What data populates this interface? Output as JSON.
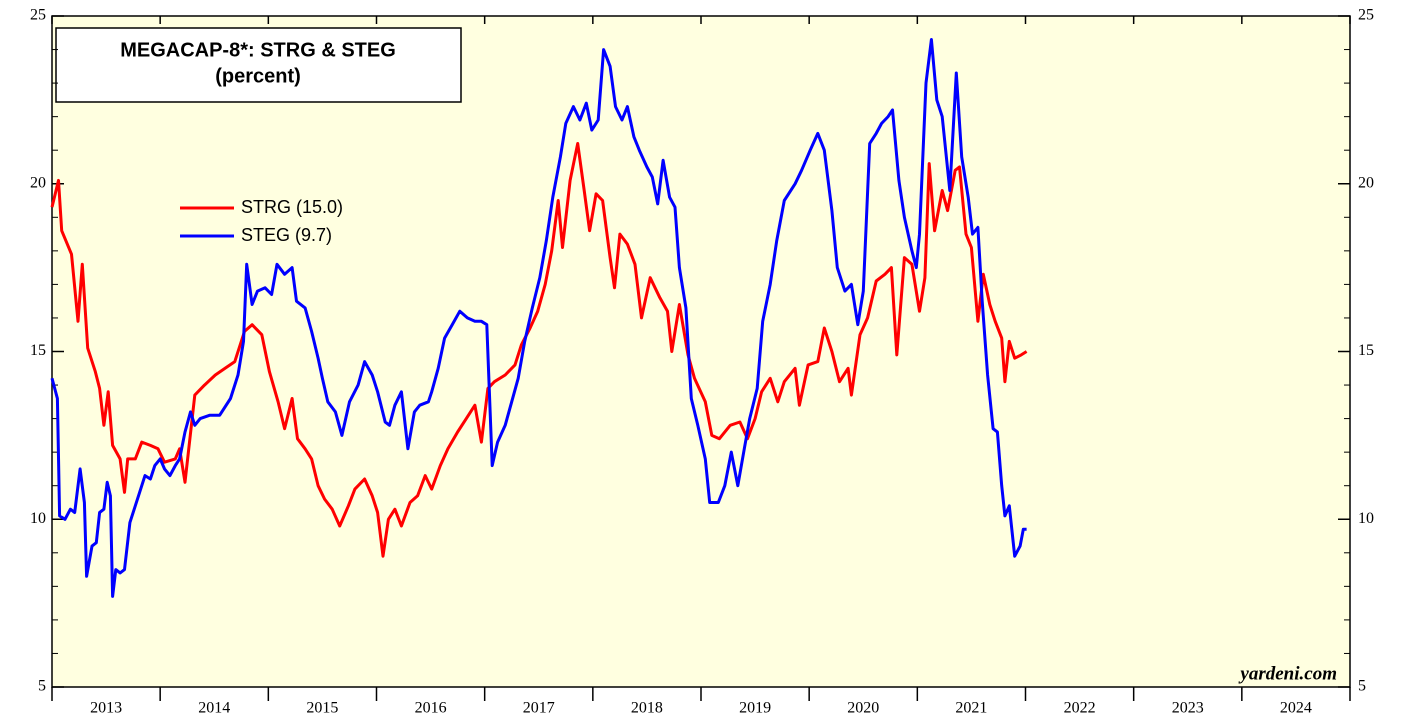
{
  "chart_data": {
    "type": "line",
    "title": "MEGACAP-8*: STRG & STEG",
    "subtitle": "(percent)",
    "watermark": "yardeni.com",
    "xlim": [
      2013,
      2025
    ],
    "xticks": [
      2013,
      2014,
      2015,
      2016,
      2017,
      2018,
      2019,
      2020,
      2021,
      2022,
      2023,
      2024,
      2025
    ],
    "x_labels": [
      {
        "value": 2013.5,
        "label": "2013"
      },
      {
        "value": 2014.5,
        "label": "2014"
      },
      {
        "value": 2015.5,
        "label": "2015"
      },
      {
        "value": 2016.5,
        "label": "2016"
      },
      {
        "value": 2017.5,
        "label": "2017"
      },
      {
        "value": 2018.5,
        "label": "2018"
      },
      {
        "value": 2019.5,
        "label": "2019"
      },
      {
        "value": 2020.5,
        "label": "2020"
      },
      {
        "value": 2021.5,
        "label": "2021"
      },
      {
        "value": 2022.5,
        "label": "2022"
      },
      {
        "value": 2023.5,
        "label": "2023"
      },
      {
        "value": 2024.5,
        "label": "2024"
      }
    ],
    "ylim": [
      5,
      25
    ],
    "yticks": [
      5,
      10,
      15,
      20,
      25
    ],
    "y_minor_ticks": [
      6,
      7,
      8,
      9,
      11,
      12,
      13,
      14,
      16,
      17,
      18,
      19,
      21,
      22,
      23,
      24
    ],
    "series": [
      {
        "name": "STRG (15.0)",
        "color": "#ff0000",
        "x": [
          2013.0,
          2013.06,
          2013.09,
          2013.18,
          2013.24,
          2013.28,
          2013.33,
          2013.4,
          2013.44,
          2013.48,
          2013.52,
          2013.56,
          2013.63,
          2013.67,
          2013.7,
          2013.77,
          2013.83,
          2013.91,
          2013.98,
          2014.04,
          2014.14,
          2014.18,
          2014.23,
          2014.32,
          2014.41,
          2014.51,
          2014.6,
          2014.69,
          2014.78,
          2014.85,
          2014.94,
          2015.01,
          2015.09,
          2015.15,
          2015.22,
          2015.27,
          2015.34,
          2015.4,
          2015.46,
          2015.52,
          2015.59,
          2015.66,
          2015.74,
          2015.8,
          2015.89,
          2015.96,
          2016.01,
          2016.06,
          2016.11,
          2016.17,
          2016.23,
          2016.31,
          2016.38,
          2016.45,
          2016.51,
          2016.59,
          2016.66,
          2016.75,
          2016.83,
          2016.91,
          2016.97,
          2017.03,
          2017.09,
          2017.19,
          2017.28,
          2017.34,
          2017.42,
          2017.49,
          2017.56,
          2017.62,
          2017.68,
          2017.72,
          2017.79,
          2017.86,
          2017.92,
          2017.97,
          2018.03,
          2018.09,
          2018.16,
          2018.2,
          2018.25,
          2018.32,
          2018.39,
          2018.45,
          2018.53,
          2018.62,
          2018.69,
          2018.73,
          2018.8,
          2018.88,
          2018.94,
          2019.04,
          2019.1,
          2019.17,
          2019.27,
          2019.36,
          2019.43,
          2019.5,
          2019.56,
          2019.64,
          2019.71,
          2019.77,
          2019.87,
          2019.91,
          2019.99,
          2020.08,
          2020.14,
          2020.21,
          2020.28,
          2020.36,
          2020.39,
          2020.47,
          2020.54,
          2020.62,
          2020.7,
          2020.76,
          2020.81,
          2020.88,
          2020.95,
          2021.02,
          2021.07,
          2021.11,
          2021.16,
          2021.23,
          2021.28,
          2021.35,
          2021.39,
          2021.45,
          2021.5,
          2021.56,
          2021.61,
          2021.67,
          2021.72,
          2021.78,
          2021.81,
          2021.85,
          2021.9,
          2021.96,
          2022.01
        ],
        "values": [
          19.3,
          20.1,
          18.6,
          17.9,
          15.9,
          17.6,
          15.1,
          14.4,
          13.9,
          12.8,
          13.8,
          12.2,
          11.8,
          10.8,
          11.8,
          11.8,
          12.3,
          12.2,
          12.1,
          11.7,
          11.8,
          12.1,
          11.1,
          13.7,
          14.0,
          14.3,
          14.5,
          14.7,
          15.6,
          15.8,
          15.5,
          14.4,
          13.5,
          12.7,
          13.6,
          12.4,
          12.1,
          11.8,
          11.0,
          10.6,
          10.3,
          9.8,
          10.4,
          10.9,
          11.2,
          10.7,
          10.2,
          8.9,
          10.0,
          10.3,
          9.8,
          10.5,
          10.7,
          11.3,
          10.9,
          11.6,
          12.1,
          12.6,
          13.0,
          13.4,
          12.3,
          13.9,
          14.1,
          14.3,
          14.6,
          15.2,
          15.7,
          16.2,
          17.0,
          18.0,
          19.5,
          18.1,
          20.1,
          21.2,
          19.8,
          18.6,
          19.7,
          19.5,
          17.8,
          16.9,
          18.5,
          18.2,
          17.6,
          16.0,
          17.2,
          16.6,
          16.2,
          15.0,
          16.4,
          14.9,
          14.2,
          13.5,
          12.5,
          12.4,
          12.8,
          12.9,
          12.4,
          13.0,
          13.8,
          14.2,
          13.5,
          14.1,
          14.5,
          13.4,
          14.6,
          14.7,
          15.7,
          15.0,
          14.1,
          14.5,
          13.7,
          15.5,
          16.0,
          17.1,
          17.3,
          17.5,
          14.9,
          17.8,
          17.6,
          16.2,
          17.2,
          20.6,
          18.6,
          19.8,
          19.2,
          20.4,
          20.5,
          18.5,
          18.1,
          15.9,
          17.3,
          16.4,
          15.9,
          15.4,
          14.1,
          15.3,
          14.8,
          14.9,
          15.0
        ]
      },
      {
        "name": "STEG (9.7)",
        "color": "#0000ff",
        "x": [
          2013.0,
          2013.05,
          2013.07,
          2013.12,
          2013.17,
          2013.21,
          2013.26,
          2013.3,
          2013.32,
          2013.37,
          2013.41,
          2013.44,
          2013.48,
          2013.51,
          2013.54,
          2013.56,
          2013.59,
          2013.63,
          2013.67,
          2013.72,
          2013.77,
          2013.81,
          2013.86,
          2013.91,
          2013.95,
          2014.0,
          2014.04,
          2014.09,
          2014.14,
          2014.18,
          2014.23,
          2014.28,
          2014.32,
          2014.37,
          2014.46,
          2014.55,
          2014.65,
          2014.72,
          2014.77,
          2014.8,
          2014.85,
          2014.9,
          2014.97,
          2015.03,
          2015.08,
          2015.15,
          2015.22,
          2015.26,
          2015.34,
          2015.4,
          2015.46,
          2015.5,
          2015.55,
          2015.62,
          2015.68,
          2015.75,
          2015.83,
          2015.89,
          2015.96,
          2016.01,
          2016.08,
          2016.12,
          2016.17,
          2016.23,
          2016.29,
          2016.35,
          2016.4,
          2016.48,
          2016.51,
          2016.57,
          2016.63,
          2016.7,
          2016.77,
          2016.84,
          2016.91,
          2016.97,
          2017.02,
          2017.07,
          2017.12,
          2017.19,
          2017.25,
          2017.31,
          2017.37,
          2017.44,
          2017.51,
          2017.57,
          2017.63,
          2017.7,
          2017.75,
          2017.82,
          2017.88,
          2017.94,
          2017.99,
          2018.05,
          2018.1,
          2018.16,
          2018.21,
          2018.27,
          2018.32,
          2018.38,
          2018.43,
          2018.5,
          2018.55,
          2018.6,
          2018.65,
          2018.71,
          2018.76,
          2018.8,
          2018.86,
          2018.91,
          2018.97,
          2019.04,
          2019.08,
          2019.16,
          2019.22,
          2019.28,
          2019.34,
          2019.4,
          2019.45,
          2019.52,
          2019.57,
          2019.64,
          2019.7,
          2019.77,
          2019.87,
          2019.93,
          2020.01,
          2020.08,
          2020.14,
          2020.21,
          2020.26,
          2020.33,
          2020.39,
          2020.45,
          2020.5,
          2020.56,
          2020.62,
          2020.67,
          2020.73,
          2020.77,
          2020.83,
          2020.88,
          2020.95,
          2020.99,
          2021.02,
          2021.08,
          2021.13,
          2021.18,
          2021.23,
          2021.3,
          2021.36,
          2021.41,
          2021.47,
          2021.51,
          2021.56,
          2021.6,
          2021.65,
          2021.7,
          2021.74,
          2021.78,
          2021.81,
          2021.85,
          2021.9,
          2021.95,
          2021.98,
          2022.01
        ],
        "values": [
          14.2,
          13.6,
          10.1,
          10.0,
          10.3,
          10.2,
          11.5,
          10.5,
          8.3,
          9.2,
          9.3,
          10.2,
          10.3,
          11.1,
          10.7,
          7.7,
          8.5,
          8.4,
          8.5,
          9.9,
          10.4,
          10.8,
          11.3,
          11.2,
          11.6,
          11.8,
          11.5,
          11.3,
          11.6,
          11.8,
          12.6,
          13.2,
          12.8,
          13.0,
          13.1,
          13.1,
          13.6,
          14.3,
          15.3,
          17.6,
          16.4,
          16.8,
          16.9,
          16.7,
          17.6,
          17.3,
          17.5,
          16.5,
          16.3,
          15.6,
          14.8,
          14.2,
          13.5,
          13.2,
          12.5,
          13.5,
          14.0,
          14.7,
          14.3,
          13.8,
          12.9,
          12.8,
          13.4,
          13.8,
          12.1,
          13.2,
          13.4,
          13.5,
          13.8,
          14.5,
          15.4,
          15.8,
          16.2,
          16.0,
          15.9,
          15.9,
          15.8,
          11.6,
          12.3,
          12.8,
          13.5,
          14.2,
          15.3,
          16.3,
          17.2,
          18.3,
          19.6,
          20.8,
          21.8,
          22.3,
          21.9,
          22.4,
          21.6,
          21.9,
          24.0,
          23.5,
          22.3,
          21.9,
          22.3,
          21.4,
          21.0,
          20.5,
          20.2,
          19.4,
          20.7,
          19.6,
          19.3,
          17.5,
          16.3,
          13.6,
          12.8,
          11.8,
          10.5,
          10.5,
          11.0,
          12.0,
          11.0,
          12.1,
          13.0,
          13.9,
          15.9,
          17.0,
          18.3,
          19.5,
          20.0,
          20.4,
          21.0,
          21.5,
          21.0,
          19.2,
          17.5,
          16.8,
          17.0,
          15.8,
          16.8,
          21.2,
          21.5,
          21.8,
          22.0,
          22.2,
          20.1,
          19.0,
          18.0,
          17.5,
          18.5,
          23.0,
          24.3,
          22.5,
          22.0,
          19.8,
          23.3,
          20.8,
          19.6,
          18.5,
          18.7,
          16.5,
          14.3,
          12.7,
          12.6,
          11.0,
          10.1,
          10.4,
          8.9,
          9.2,
          9.7,
          9.7
        ]
      }
    ]
  }
}
